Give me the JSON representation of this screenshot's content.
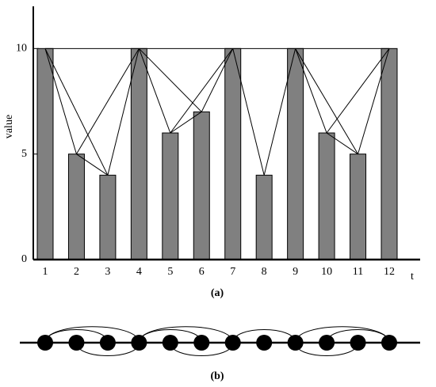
{
  "chart_data": {
    "type": "bar",
    "categories": [
      "1",
      "2",
      "3",
      "4",
      "5",
      "6",
      "7",
      "8",
      "9",
      "10",
      "11",
      "12"
    ],
    "values": [
      10,
      5,
      4,
      10,
      6,
      7,
      10,
      4,
      10,
      6,
      5,
      10
    ],
    "color": "#808080",
    "ylim": [
      0,
      12
    ],
    "yticks": [
      0,
      5,
      10
    ],
    "x_label": "t",
    "y_label": "value",
    "caption_a": "(a)",
    "caption_b": "(b)"
  }
}
